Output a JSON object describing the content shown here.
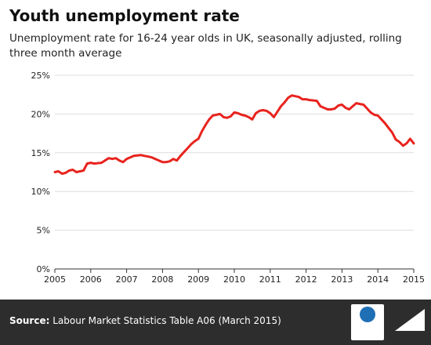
{
  "title": "Youth unemployment rate",
  "subtitle": "Unemployment rate for 16-24 year olds in UK, seasonally adjusted, rolling three month average",
  "source": {
    "label": "Source:",
    "text": "Labour Market Statistics Table A06 (March 2015)"
  },
  "logos": {
    "nfer_name": "nfer",
    "nfer_tagline": "National Foundation for Educational Research",
    "fullfact": "Full Fact"
  },
  "chart_data": {
    "type": "line",
    "title": "Youth unemployment rate",
    "xlabel": "",
    "ylabel": "",
    "xlim": [
      2005,
      2015
    ],
    "ylim": [
      0,
      25
    ],
    "x_ticks": [
      "2005",
      "2006",
      "2007",
      "2008",
      "2009",
      "2010",
      "2011",
      "2012",
      "2013",
      "2014",
      "2015"
    ],
    "y_ticks": [
      "0%",
      "5%",
      "10%",
      "15%",
      "20%",
      "25%"
    ],
    "grid": true,
    "color": "#e8231e",
    "series": [
      {
        "x": [
          2005.0,
          2005.1,
          2005.2,
          2005.3,
          2005.4,
          2005.5,
          2005.6,
          2005.7,
          2005.8,
          2005.9,
          2006.0,
          2006.1,
          2006.3,
          2006.5,
          2006.6,
          2006.7,
          2006.8,
          2006.9,
          2007.0,
          2007.1,
          2007.2,
          2007.4,
          2007.5,
          2007.6,
          2007.7,
          2007.8,
          2007.9,
          2008.0,
          2008.1,
          2008.2,
          2008.3,
          2008.4,
          2008.5,
          2008.6,
          2008.7,
          2008.8,
          2008.9,
          2009.0,
          2009.1,
          2009.2,
          2009.3,
          2009.4,
          2009.5,
          2009.6,
          2009.7,
          2009.8,
          2009.9,
          2010.0,
          2010.1,
          2010.2,
          2010.3,
          2010.4,
          2010.5,
          2010.6,
          2010.7,
          2010.8,
          2010.9,
          2011.0,
          2011.1,
          2011.2,
          2011.3,
          2011.4,
          2011.5,
          2011.6,
          2011.7,
          2011.8,
          2011.9,
          2012.0,
          2012.1,
          2012.3,
          2012.4,
          2012.5,
          2012.6,
          2012.7,
          2012.8,
          2012.9,
          2013.0,
          2013.1,
          2013.2,
          2013.3,
          2013.4,
          2013.5,
          2013.6,
          2013.7,
          2013.8,
          2013.9,
          2014.0,
          2014.1,
          2014.2,
          2014.3,
          2014.4,
          2014.5,
          2014.6,
          2014.7,
          2014.8,
          2014.9,
          2015.0
        ],
        "values": [
          12.5,
          12.6,
          12.3,
          12.4,
          12.7,
          12.8,
          12.5,
          12.6,
          12.7,
          13.6,
          13.7,
          13.6,
          13.7,
          14.3,
          14.2,
          14.3,
          14.0,
          13.8,
          14.2,
          14.4,
          14.6,
          14.7,
          14.6,
          14.5,
          14.4,
          14.2,
          14.0,
          13.8,
          13.8,
          13.9,
          14.2,
          14.0,
          14.6,
          15.1,
          15.6,
          16.1,
          16.5,
          16.8,
          17.8,
          18.6,
          19.3,
          19.8,
          19.9,
          20.0,
          19.6,
          19.5,
          19.7,
          20.2,
          20.1,
          19.9,
          19.8,
          19.6,
          19.3,
          20.1,
          20.4,
          20.5,
          20.4,
          20.1,
          19.6,
          20.3,
          21.0,
          21.5,
          22.1,
          22.4,
          22.3,
          22.2,
          21.9,
          21.9,
          21.8,
          21.7,
          21.0,
          20.8,
          20.6,
          20.6,
          20.7,
          21.1,
          21.2,
          20.8,
          20.6,
          21.0,
          21.4,
          21.3,
          21.2,
          20.7,
          20.2,
          19.9,
          19.8,
          19.3,
          18.8,
          18.2,
          17.6,
          16.7,
          16.4,
          15.9,
          16.2,
          16.8,
          16.2
        ]
      }
    ]
  }
}
